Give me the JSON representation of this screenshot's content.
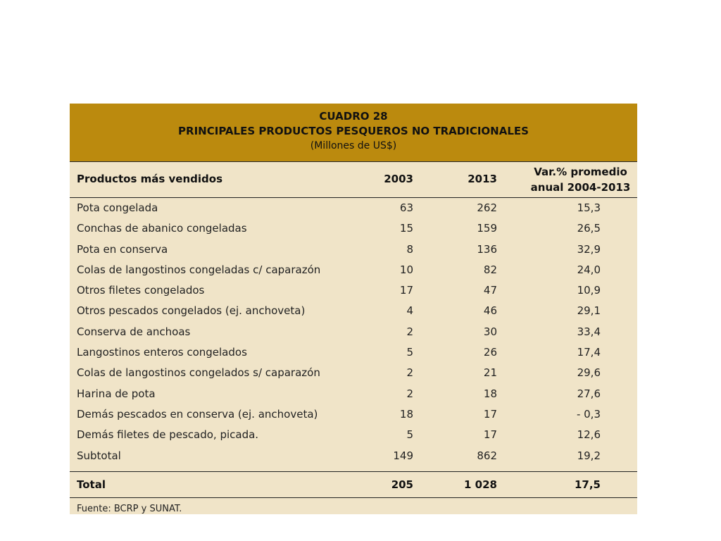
{
  "title": {
    "number": "CUADRO 28",
    "main": "PRINCIPALES PRODUCTOS PESQUEROS NO TRADICIONALES",
    "unit": "(Millones de US$)"
  },
  "headers": {
    "product": "Productos más vendidos",
    "y2003": "2003",
    "y2013": "2013",
    "var_line1": "Var.% promedio",
    "var_line2": "anual 2004-2013"
  },
  "rows": [
    {
      "name": "Pota congelada",
      "y2003": "63",
      "y2013": "262",
      "var": "15,3"
    },
    {
      "name": "Conchas de abanico congeladas",
      "y2003": "15",
      "y2013": "159",
      "var": "26,5"
    },
    {
      "name": "Pota en conserva",
      "y2003": "8",
      "y2013": "136",
      "var": "32,9"
    },
    {
      "name": "Colas de langostinos congeladas c/ caparazón",
      "y2003": "10",
      "y2013": "82",
      "var": "24,0"
    },
    {
      "name": "Otros filetes congelados",
      "y2003": "17",
      "y2013": "47",
      "var": "10,9"
    },
    {
      "name": "Otros pescados congelados (ej. anchoveta)",
      "y2003": "4",
      "y2013": "46",
      "var": "29,1"
    },
    {
      "name": "Conserva de anchoas",
      "y2003": "2",
      "y2013": "30",
      "var": "33,4"
    },
    {
      "name": "Langostinos enteros congelados",
      "y2003": "5",
      "y2013": "26",
      "var": "17,4"
    },
    {
      "name": "Colas de langostinos congelados s/ caparazón",
      "y2003": "2",
      "y2013": "21",
      "var": "29,6"
    },
    {
      "name": "Harina de pota",
      "y2003": "2",
      "y2013": "18",
      "var": "27,6"
    },
    {
      "name": "Demás pescados en conserva (ej. anchoveta)",
      "y2003": "18",
      "y2013": "17",
      "var": "- 0,3"
    },
    {
      "name": "Demás filetes de pescado, picada.",
      "y2003": "5",
      "y2013": "17",
      "var": "12,6"
    },
    {
      "name": "Subtotal",
      "y2003": "149",
      "y2013": "862",
      "var": "19,2"
    }
  ],
  "total": {
    "name": "Total",
    "y2003": "205",
    "y2013": "1 028",
    "var": "17,5"
  },
  "source": "Fuente: BCRP y SUNAT.",
  "colors": {
    "title_bg": "#bb8a0e",
    "table_bg": "#f0e4c8"
  }
}
